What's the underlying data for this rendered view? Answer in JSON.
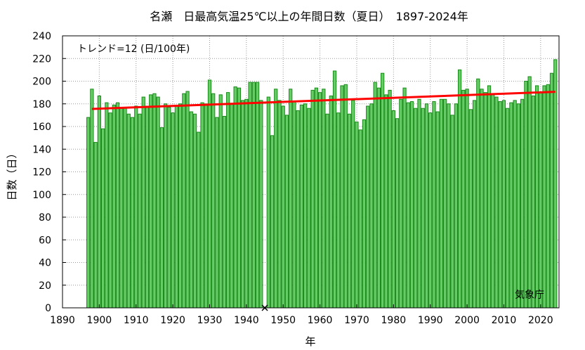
{
  "chart_data": {
    "type": "bar",
    "title": "名瀬　日最高気温25℃以上の年間日数（夏日）　1897-2024年",
    "xlabel": "年",
    "ylabel": "日数（日）",
    "trend_label": "トレンド=12 (日/100年)",
    "credit": "気象庁",
    "xlim": [
      1890,
      2025
    ],
    "ylim": [
      0,
      240
    ],
    "x_ticks": [
      1890,
      1900,
      1910,
      1920,
      1930,
      1940,
      1950,
      1960,
      1970,
      1980,
      1990,
      2000,
      2010,
      2020
    ],
    "y_ticks": [
      0,
      20,
      40,
      60,
      80,
      100,
      120,
      140,
      160,
      180,
      200,
      220,
      240
    ],
    "grid": true,
    "bar_color": "#66cc66",
    "bar_edge_color": "#1a8a1a",
    "trend_color": "#ff0000",
    "missing_marker_color": "#000000",
    "start_year": 1897,
    "values": [
      168,
      193,
      146,
      187,
      158,
      181,
      172,
      179,
      181,
      176,
      177,
      171,
      168,
      178,
      171,
      186,
      178,
      188,
      189,
      186,
      159,
      180,
      177,
      172,
      178,
      180,
      189,
      191,
      173,
      171,
      155,
      181,
      180,
      201,
      189,
      168,
      188,
      169,
      190,
      180,
      195,
      194,
      183,
      184,
      199,
      199,
      199,
      183,
      null,
      186,
      152,
      193,
      183,
      178,
      170,
      193,
      182,
      174,
      179,
      180,
      176,
      192,
      194,
      190,
      193,
      171,
      187,
      209,
      172,
      196,
      197,
      171,
      183,
      164,
      157,
      166,
      178,
      180,
      199,
      194,
      207,
      188,
      192,
      174,
      167,
      184,
      194,
      181,
      182,
      176,
      184,
      176,
      180,
      172,
      182,
      173,
      184,
      184,
      180,
      170,
      180,
      210,
      192,
      193,
      175,
      183,
      202,
      193,
      190,
      196,
      188,
      186,
      182,
      183,
      176,
      181,
      183,
      180,
      184,
      200,
      204,
      187,
      196,
      190,
      196,
      197,
      207,
      219
    ],
    "missing_years": [
      1945
    ],
    "trend": {
      "x": [
        1898,
        2024
      ],
      "y": [
        175.5,
        190.6
      ]
    }
  }
}
